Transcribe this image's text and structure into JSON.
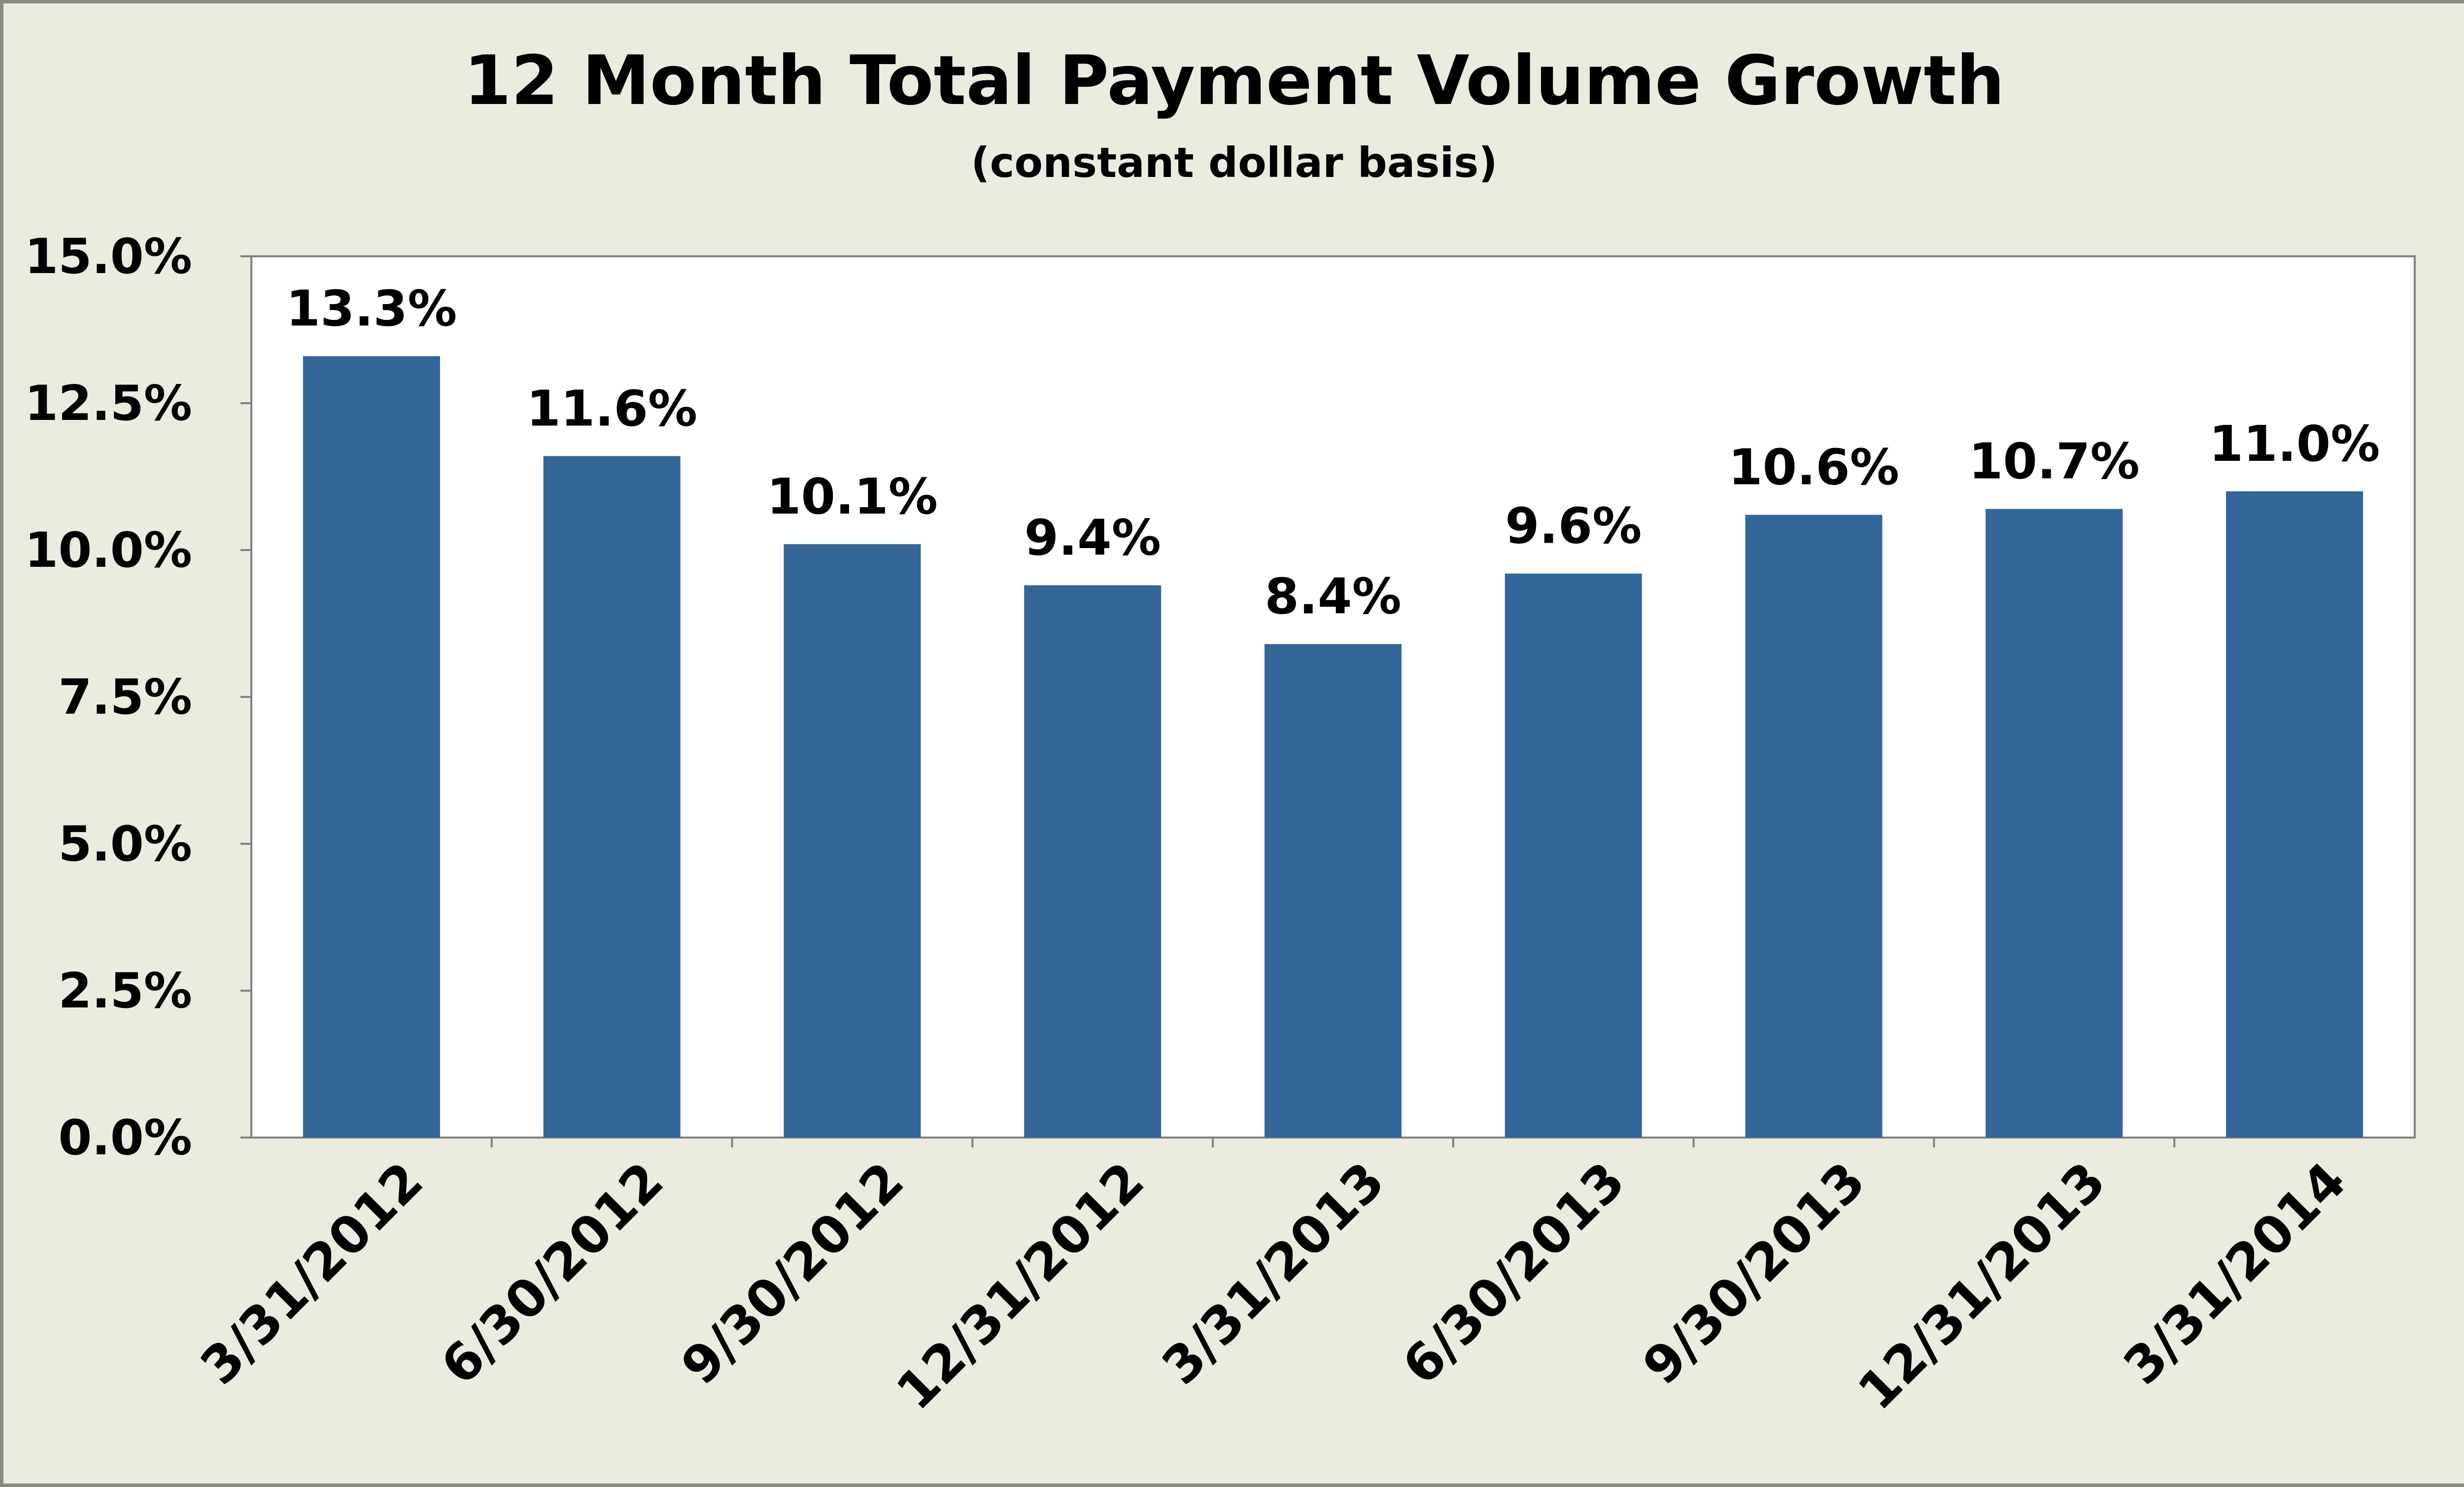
{
  "chart_data": {
    "type": "bar",
    "title": "12 Month Total Payment Volume Growth",
    "subtitle": "(constant dollar basis)",
    "xlabel": "",
    "ylabel": "",
    "categories": [
      "3/31/2012",
      "6/30/2012",
      "9/30/2012",
      "12/31/2012",
      "3/31/2013",
      "6/30/2013",
      "9/30/2013",
      "12/31/2013",
      "3/31/2014"
    ],
    "values": [
      13.3,
      11.6,
      10.1,
      9.4,
      8.4,
      9.6,
      10.6,
      10.7,
      11.0
    ],
    "data_labels": [
      "13.3%",
      "11.6%",
      "10.1%",
      "9.4%",
      "8.4%",
      "9.6%",
      "10.6%",
      "10.7%",
      "11.0%"
    ],
    "ylim": [
      0,
      15
    ],
    "yticks": [
      0,
      2.5,
      5,
      7.5,
      10,
      12.5,
      15
    ],
    "ytick_labels": [
      "0.0%",
      "2.5%",
      "5.0%",
      "7.5%",
      "10.0%",
      "12.5%",
      "15.0%"
    ],
    "grid": false,
    "legend": "none",
    "colors": {
      "bar": "#336699",
      "plot_background": "#ffffff",
      "chart_background": "#ecebe0"
    }
  }
}
